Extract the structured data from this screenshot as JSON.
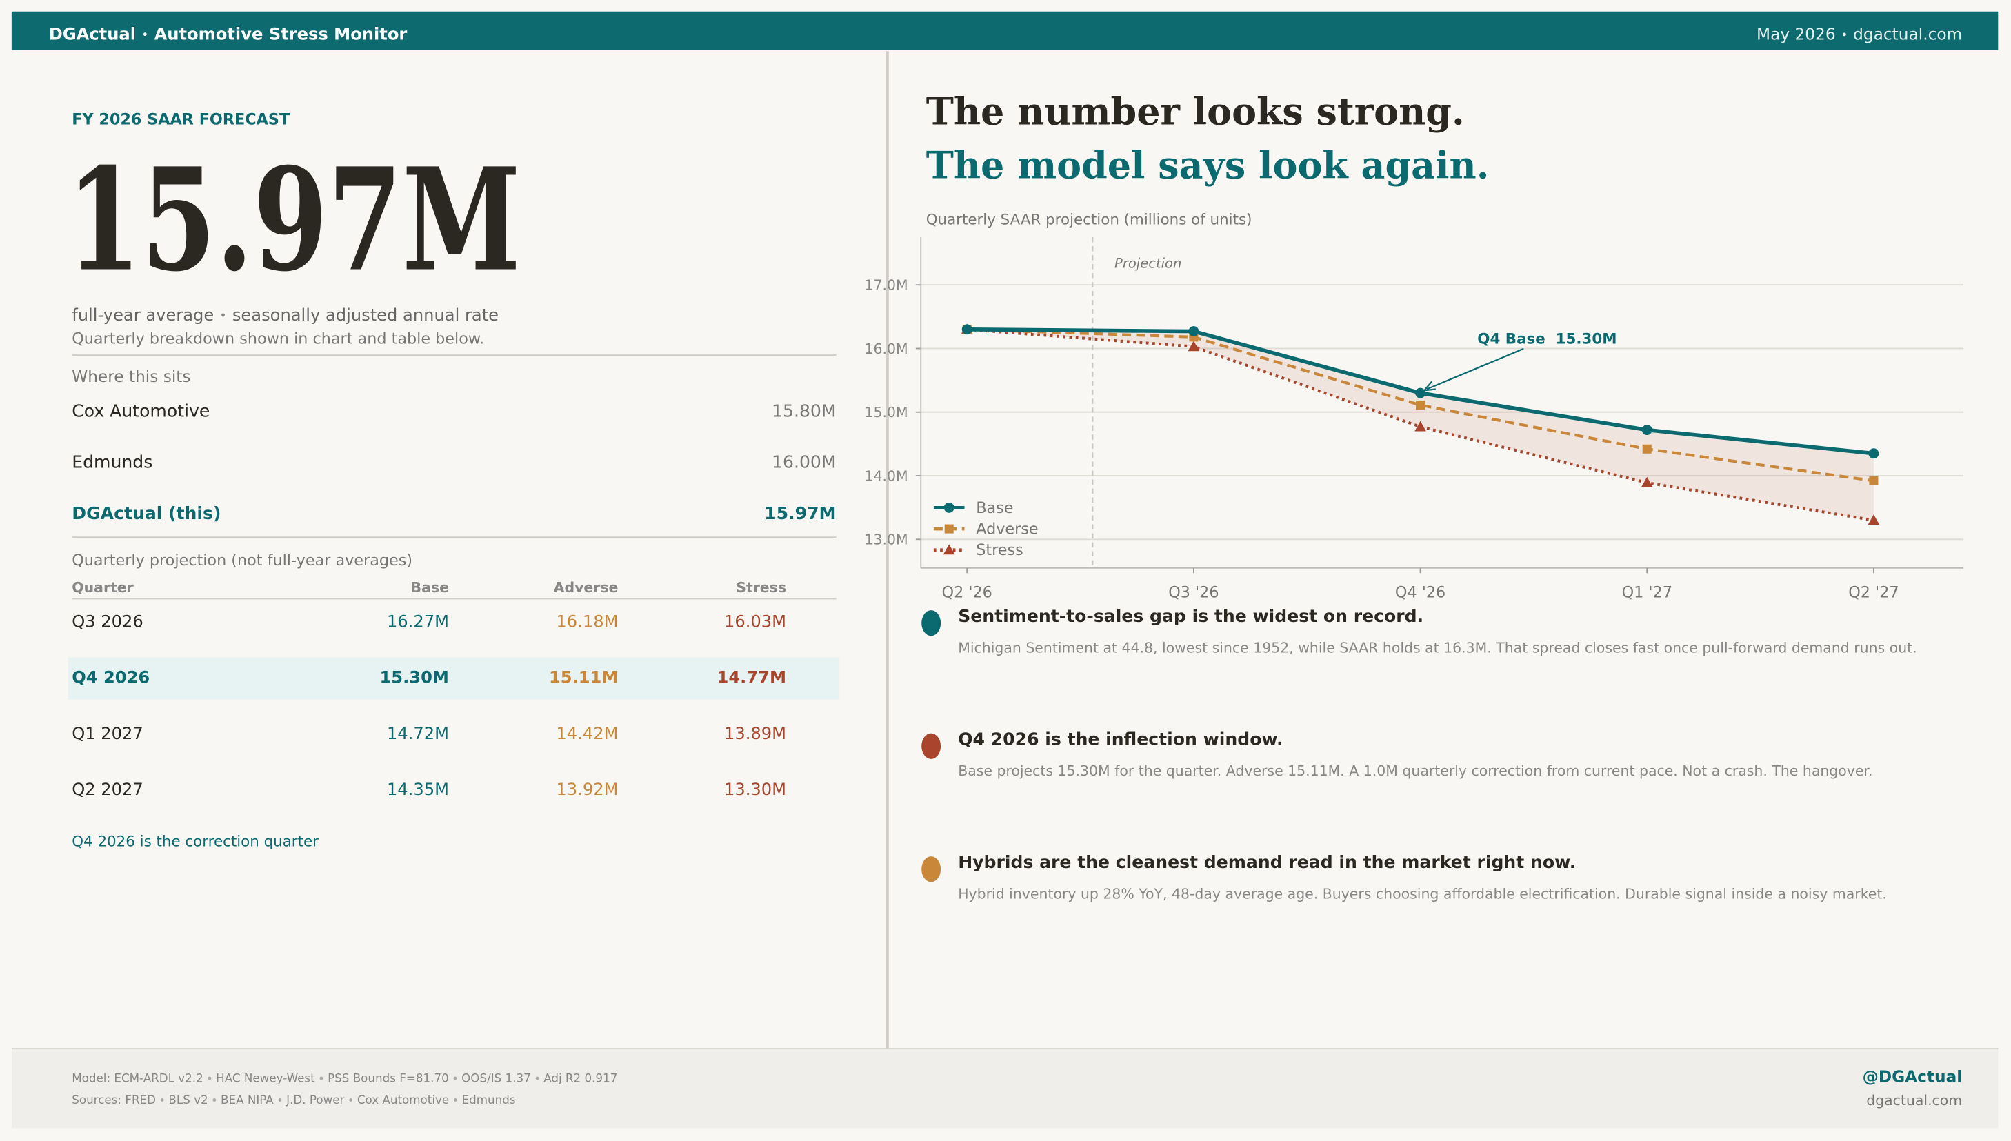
{
  "header": {
    "brand": "DGActual",
    "title": "Automotive Stress Monitor",
    "date": "May 2026",
    "site": "dgactual.com"
  },
  "forecast": {
    "kicker": "FY 2026 SAAR FORECAST",
    "value": "15.97M",
    "subtitle": [
      "full-year average",
      "seasonally adjusted annual rate"
    ],
    "note": "Quarterly breakdown shown in chart and table below."
  },
  "comparison": {
    "title": "Where this sits",
    "rows": [
      {
        "source": "Cox Automotive",
        "value": "15.80M"
      },
      {
        "source": "Edmunds",
        "value": "16.00M"
      },
      {
        "source": "DGActual (this)",
        "value": "15.97M",
        "highlighted": true
      }
    ]
  },
  "table": {
    "title": "Quarterly projection  (not full-year averages)",
    "columns": [
      "Quarter",
      "Base",
      "Adverse",
      "Stress"
    ],
    "rows": [
      [
        "Q3 2026",
        "16.27M",
        "16.18M",
        "16.03M"
      ],
      [
        "Q4 2026",
        "15.30M",
        "15.11M",
        "14.77M"
      ],
      [
        "Q1 2027",
        "14.72M",
        "14.42M",
        "13.89M"
      ],
      [
        "Q2 2027",
        "14.35M",
        "13.92M",
        "13.30M"
      ]
    ],
    "highlighted_row": 1,
    "note": "Q4 2026 is the correction quarter"
  },
  "headline": [
    "The number looks strong.",
    "The model says look again."
  ],
  "chart_data": {
    "type": "line",
    "ylabel": "Quarterly SAAR projection (millions of units)",
    "categories": [
      "Q2 '26",
      "Q3 '26",
      "Q4 '26",
      "Q1 '27",
      "Q2 '27"
    ],
    "series": [
      {
        "name": "Base",
        "color": "#0b6a70",
        "marker": "circle",
        "dash": "solid",
        "values": [
          16.3,
          16.27,
          15.3,
          14.72,
          14.35
        ]
      },
      {
        "name": "Adverse",
        "color": "#c9873a",
        "marker": "square",
        "dash": "dashed",
        "values": [
          16.3,
          16.18,
          15.11,
          14.42,
          13.92
        ]
      },
      {
        "name": "Stress",
        "color": "#a8452c",
        "marker": "triangle",
        "dash": "dotted",
        "values": [
          16.3,
          16.03,
          14.77,
          13.89,
          13.3
        ]
      }
    ],
    "ylim": [
      12.55,
      17.75
    ],
    "yticks": [
      {
        "value": 13,
        "label": "13.0M"
      },
      {
        "value": 14,
        "label": "14.0M"
      },
      {
        "value": 15,
        "label": "15.0M"
      },
      {
        "value": 16,
        "label": "16.0M"
      },
      {
        "value": 17,
        "label": "17.0M"
      }
    ],
    "grid": true,
    "legend": "lower left",
    "projection_label": "Projection",
    "annotation": "Q4 Base  15.30M"
  },
  "insights": [
    {
      "color": "#0b6a70",
      "title": "Sentiment-to-sales gap is the widest on record.",
      "body": "Michigan Sentiment at 44.8, lowest since 1952, while SAAR holds at 16.3M. That spread closes fast once pull-forward demand runs out."
    },
    {
      "color": "#a8452c",
      "title": "Q4 2026 is the inflection window.",
      "body": "Base projects 15.30M for the quarter. Adverse 15.11M. A 1.0M quarterly correction from current pace. Not a crash. The hangover."
    },
    {
      "color": "#c9873a",
      "title": "Hybrids are the cleanest demand read in the market right now.",
      "body": "Hybrid inventory up 28% YoY, 48-day average age. Buyers choosing affordable electrification. Durable signal inside a noisy market."
    }
  ],
  "footer": {
    "model": [
      "Model: ECM-ARDL v2.2",
      "HAC Newey-West",
      "PSS Bounds F=81.70",
      "OOS/IS 1.37",
      "Adj R2 0.917"
    ],
    "sources": [
      "Sources: FRED",
      "BLS v2",
      "BEA NIPA",
      "J.D. Power",
      "Cox Automotive",
      "Edmunds"
    ],
    "handle": "@DGActual",
    "site": "dgactual.com"
  }
}
